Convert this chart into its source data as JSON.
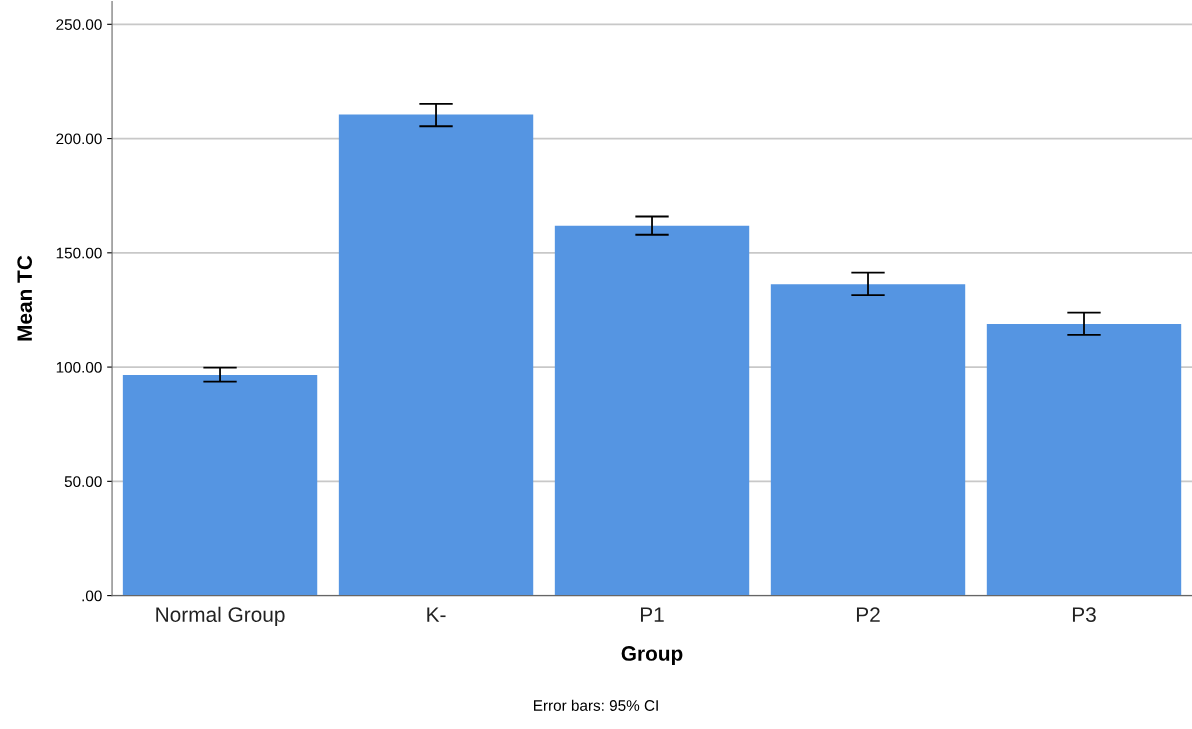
{
  "chart_data": {
    "type": "bar",
    "xlabel": "Group",
    "ylabel": "Mean TC",
    "categories": [
      "Normal Group",
      "K-",
      "P1",
      "P2",
      "P3"
    ],
    "values": [
      96.5,
      210.5,
      161.8,
      136.3,
      118.8
    ],
    "errors": [
      [
        93.6,
        99.8
      ],
      [
        205.4,
        215.2
      ],
      [
        157.9,
        165.9
      ],
      [
        131.5,
        141.3
      ],
      [
        114.1,
        123.8
      ]
    ],
    "color": "#5595e2",
    "ylim": [
      0,
      260
    ],
    "yticks": [
      {
        "value": 0,
        "label": ".00"
      },
      {
        "value": 50,
        "label": "50.00"
      },
      {
        "value": 100,
        "label": "100.00"
      },
      {
        "value": 150,
        "label": "150.00"
      },
      {
        "value": 200,
        "label": "200.00"
      },
      {
        "value": 250,
        "label": "250.00"
      }
    ],
    "grid": "y",
    "annotations": [
      "Error bars: 95% CI"
    ]
  }
}
